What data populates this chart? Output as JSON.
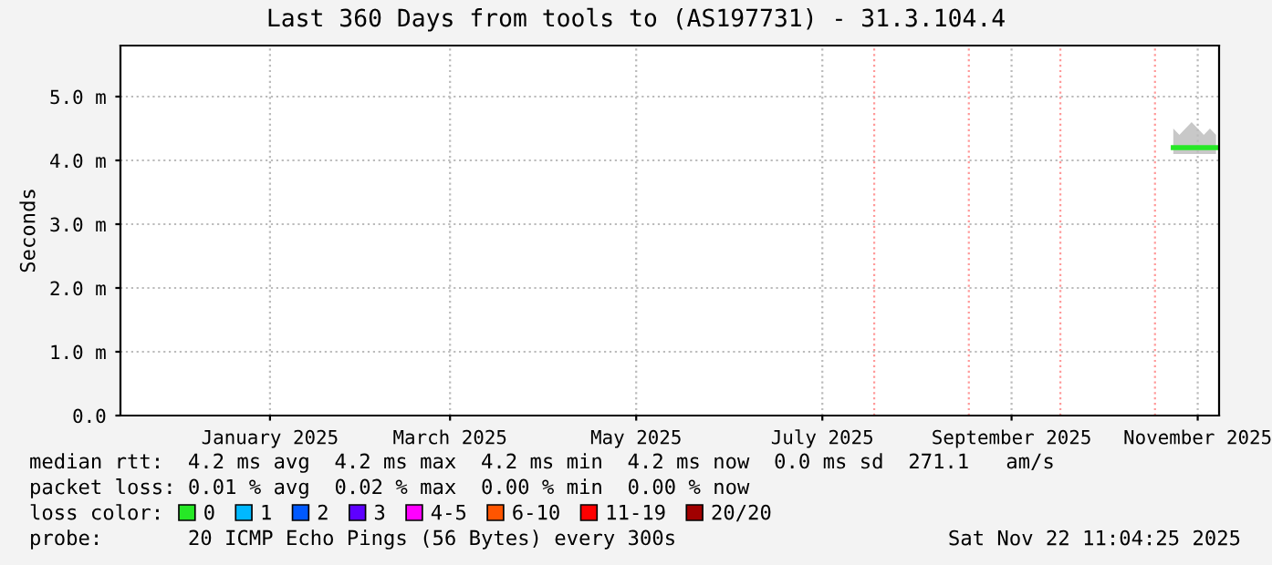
{
  "chart_data": {
    "type": "line",
    "title": "Last 360 Days from tools to (AS197731) - 31.3.104.4",
    "ylabel": "Seconds",
    "xlim": [
      "2024-11-27",
      "2025-11-22"
    ],
    "xticks": [
      {
        "value": "2025-01-15",
        "label": "January 2025"
      },
      {
        "value": "2025-03-15",
        "label": "March 2025"
      },
      {
        "value": "2025-05-15",
        "label": "May 2025"
      },
      {
        "value": "2025-07-15",
        "label": "July 2025"
      },
      {
        "value": "2025-09-15",
        "label": "September 2025"
      },
      {
        "value": "2025-11-15",
        "label": "November 2025"
      }
    ],
    "ylim": [
      0,
      5.8
    ],
    "yticks": [
      {
        "value": 0,
        "label": "0.0"
      },
      {
        "value": 1,
        "label": "1.0 m"
      },
      {
        "value": 2,
        "label": "2.0 m"
      },
      {
        "value": 3,
        "label": "3.0 m"
      },
      {
        "value": 4,
        "label": "4.0 m"
      },
      {
        "value": 5,
        "label": "5.0 m"
      }
    ],
    "grid": true,
    "legend": "bottom left",
    "ref_lines": [
      {
        "axis": "x",
        "value": "2025-08-01",
        "color": "#ff9999",
        "line_style": "dotted"
      },
      {
        "axis": "x",
        "value": "2025-09-01",
        "color": "#ff9999",
        "line_style": "dotted"
      },
      {
        "axis": "x",
        "value": "2025-10-01",
        "color": "#ff9999",
        "line_style": "dotted"
      },
      {
        "axis": "x",
        "value": "2025-11-01",
        "color": "#ff9999",
        "line_style": "dotted"
      }
    ],
    "series": [
      {
        "name": "0",
        "color": "#26e826",
        "x": [
          "2025-11-07",
          "2025-11-09",
          "2025-11-11",
          "2025-11-13",
          "2025-11-15",
          "2025-11-17",
          "2025-11-19",
          "2025-11-21"
        ],
        "values": [
          4.2,
          4.2,
          4.2,
          4.2,
          4.2,
          4.2,
          4.2,
          4.2
        ],
        "lower": [
          4.1,
          4.1,
          4.1,
          4.1,
          4.1,
          4.1,
          4.1,
          4.1
        ],
        "upper": [
          4.5,
          4.4,
          4.5,
          4.6,
          4.5,
          4.4,
          4.5,
          4.4
        ]
      },
      {
        "name": "1",
        "color": "#00b8ff"
      },
      {
        "name": "2",
        "color": "#0059ff"
      },
      {
        "name": "3",
        "color": "#5e00ff"
      },
      {
        "name": "4-5",
        "color": "#ff00ff"
      },
      {
        "name": "6-10",
        "color": "#ff5500"
      },
      {
        "name": "11-19",
        "color": "#ff0000"
      },
      {
        "name": "20/20",
        "color": "#a10000"
      }
    ],
    "annotations": [
      "median rtt:  4.2 ms avg  4.2 ms max  4.2 ms min  4.2 ms now  0.0 ms sd  271.1   am/s",
      "packet loss: 0.01 % avg  0.02 % max  0.00 % min  0.00 % now",
      "loss color:",
      "probe:       20 ICMP Echo Pings (56 Bytes) every 300s",
      "Sat Nov 22 11:04:25 2025"
    ]
  }
}
